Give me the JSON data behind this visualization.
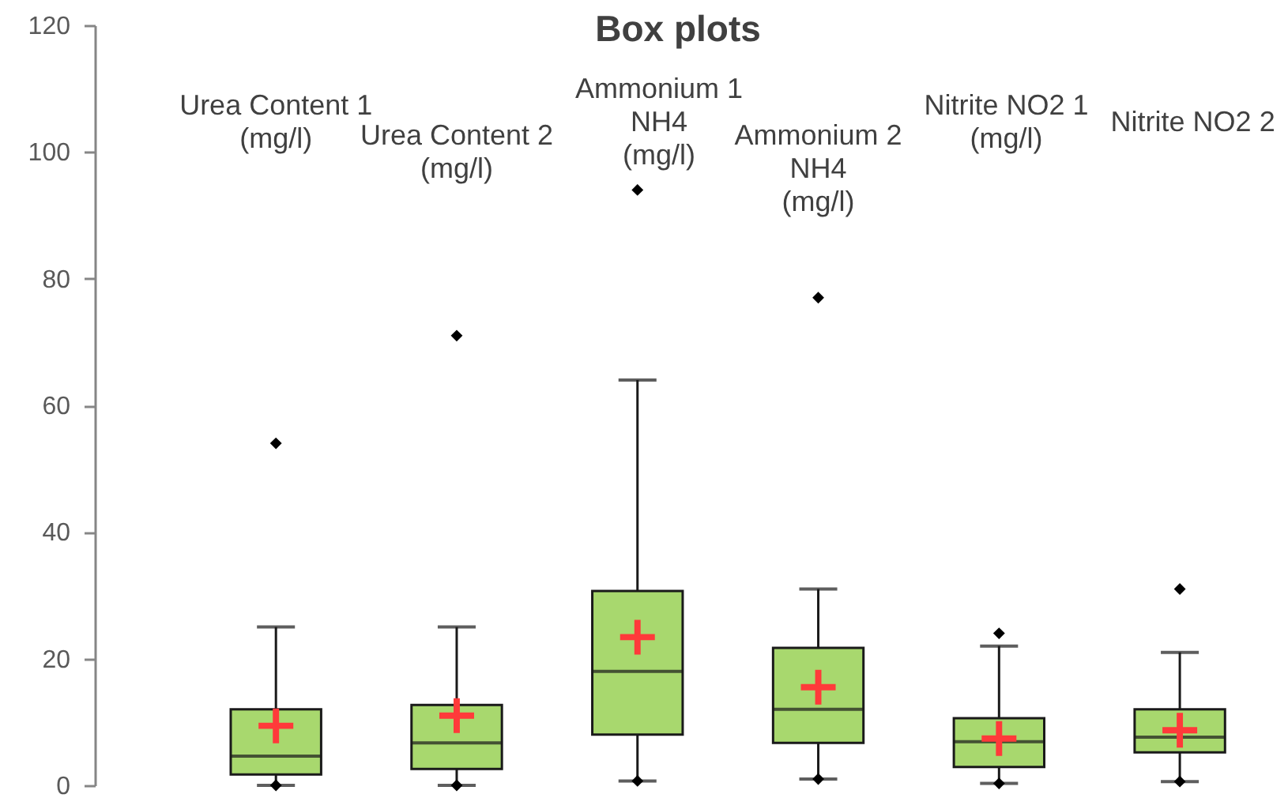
{
  "chart_data": {
    "type": "box",
    "title": "Box plots",
    "categories": [
      "Urea Content 1 (mg/l)",
      "Urea Content 2 (mg/l)",
      "Ammonium 1 NH4 (mg/l)",
      "Ammonium 2 NH4 (mg/l)",
      "Nitrite NO2 1 (mg/l)",
      "Nitrite NO2 2"
    ],
    "color": "#a8d86e",
    "boxes": [
      {
        "low": 0,
        "q1": 1.7,
        "median": 4.6,
        "q3": 12,
        "high": 25,
        "mean": 9.4,
        "outliers": [
          0,
          54
        ]
      },
      {
        "low": 0,
        "q1": 2.6,
        "median": 6.7,
        "q3": 12.7,
        "high": 25,
        "mean": 11,
        "outliers": [
          0,
          71
        ]
      },
      {
        "low": 0.7,
        "q1": 8,
        "median": 18,
        "q3": 30.7,
        "high": 64,
        "mean": 23.4,
        "outliers": [
          0.7,
          94
        ]
      },
      {
        "low": 1,
        "q1": 6.7,
        "median": 12,
        "q3": 21.7,
        "high": 31,
        "mean": 15.5,
        "outliers": [
          1,
          77
        ]
      },
      {
        "low": 0.3,
        "q1": 2.9,
        "median": 6.9,
        "q3": 10.6,
        "high": 22,
        "mean": 7.4,
        "outliers": [
          0.3,
          24
        ]
      },
      {
        "low": 0.6,
        "q1": 5.2,
        "median": 7.6,
        "q3": 12,
        "high": 21,
        "mean": 8.7,
        "outliers": [
          0.6,
          31
        ]
      }
    ],
    "ylim": [
      0,
      120
    ],
    "yticks": [
      0,
      20,
      40,
      60,
      80,
      100,
      120
    ]
  }
}
